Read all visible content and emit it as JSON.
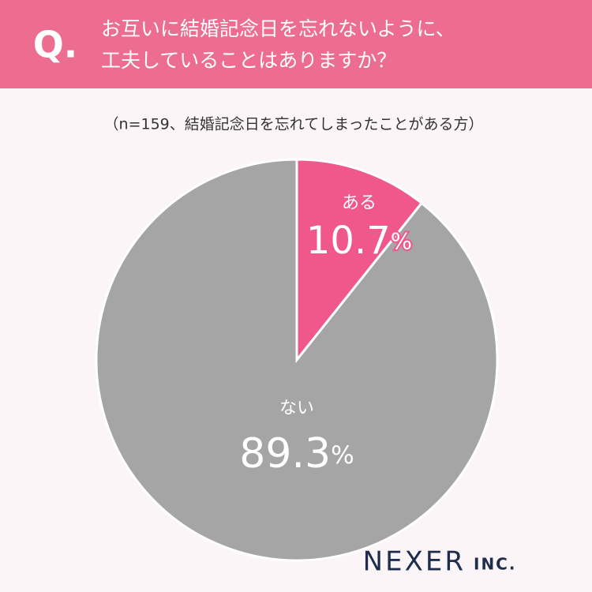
{
  "header": {
    "badge": "Q.",
    "question_lines": [
      "お互いに結婚記念日を忘れないように、",
      "工夫していることはありますか？"
    ]
  },
  "chart_data": {
    "type": "pie",
    "subtitle": "（n=159、結婚記念日を忘れてしまったことがある方）",
    "categories": [
      "ある",
      "ない"
    ],
    "values": [
      10.7,
      89.3
    ],
    "value_labels": [
      "10.7%",
      "89.3%"
    ],
    "colors": [
      "#f0578a",
      "#a5a5a5"
    ]
  },
  "logo": {
    "name": "NEXER",
    "suffix": "INC."
  }
}
